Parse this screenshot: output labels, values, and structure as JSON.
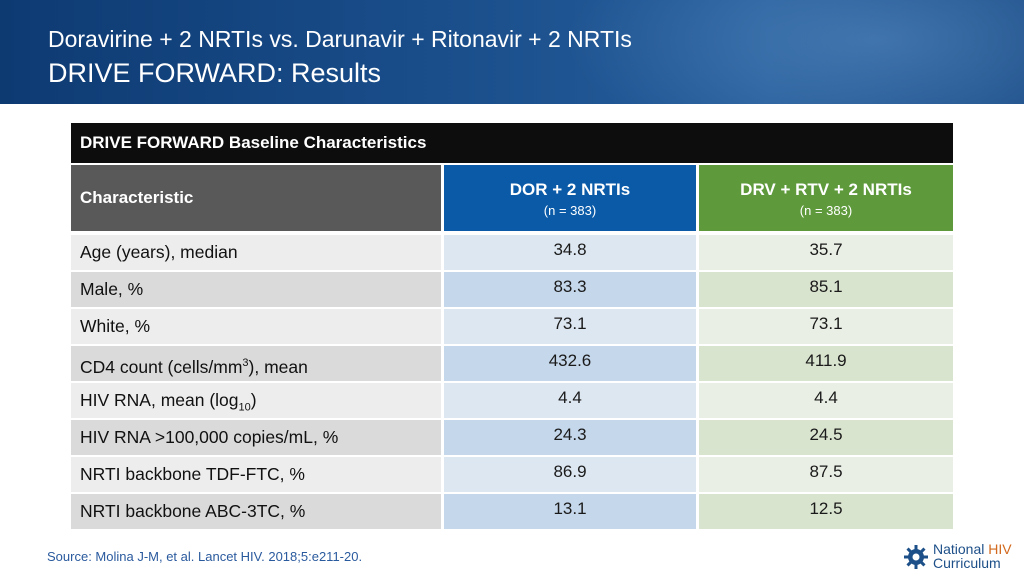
{
  "header": {
    "subtitle": "Doravirine + 2 NRTIs vs. Darunavir + Ritonavir + 2 NRTIs",
    "title": "DRIVE FORWARD: Results"
  },
  "table": {
    "caption": "DRIVE FORWARD Baseline Characteristics",
    "col_characteristic": "Characteristic",
    "col_dor": {
      "label": "DOR + 2 NRTIs",
      "n": "(n = 383)"
    },
    "col_drv": {
      "label": "DRV + RTV + 2 NRTIs",
      "n": "(n = 383)"
    },
    "rows": [
      {
        "label": "Age (years), median",
        "dor": "34.8",
        "drv": "35.7"
      },
      {
        "label": "Male, %",
        "dor": "83.3",
        "drv": "85.1"
      },
      {
        "label": "White, %",
        "dor": "73.1",
        "drv": "73.1"
      },
      {
        "label_pre": "CD4 count (cells/mm",
        "label_sup": "3",
        "label_post": "), mean",
        "dor": "432.6",
        "drv": "411.9"
      },
      {
        "label_pre": "HIV RNA, mean (log",
        "label_sub": "10",
        "label_post": ")",
        "dor": "4.4",
        "drv": "4.4"
      },
      {
        "label": "HIV RNA >100,000 copies/mL, %",
        "dor": "24.3",
        "drv": "24.5"
      },
      {
        "label": "NRTI backbone TDF-FTC, %",
        "dor": "86.9",
        "drv": "87.5"
      },
      {
        "label": "NRTI backbone ABC-3TC, %",
        "dor": "13.1",
        "drv": "12.5"
      }
    ]
  },
  "footer": {
    "source": "Source: Molina J-M, et al. Lancet HIV. 2018;5:e211-20.",
    "logo": {
      "word1": "National",
      "word2": "HIV",
      "word3": "Curriculum",
      "icon": "gear-icon"
    }
  },
  "colors": {
    "header_bg": "#1a4f8c",
    "dor_header": "#0a5aa8",
    "drv_header": "#5e9a3c",
    "char_header": "#595959",
    "caption_bg": "#0d0d0d"
  }
}
